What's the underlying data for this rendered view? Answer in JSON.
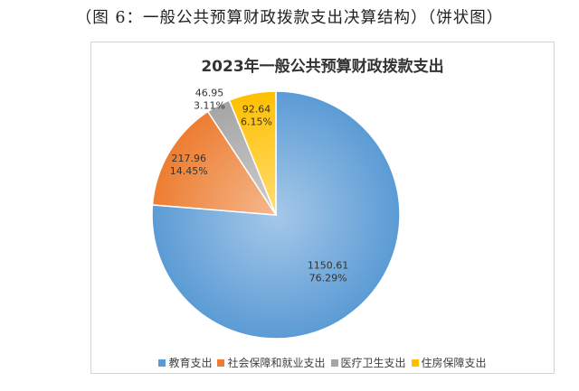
{
  "caption": "（图 6：一般公共预算财政拨款支出决算结构）（饼状图）",
  "chart_data": {
    "type": "pie",
    "title": "2023年一般公共预算财政拨款支出",
    "legend_position": "bottom",
    "slices": [
      {
        "name": "教育支出",
        "value": 1150.61,
        "percent": "76.29%",
        "value_label": "1150.61",
        "color": "#5b9bd5"
      },
      {
        "name": "社会保障和就业支出",
        "value": 217.96,
        "percent": "14.45%",
        "value_label": "217.96",
        "color": "#ed7d31"
      },
      {
        "name": "医疗卫生支出",
        "value": 46.95,
        "percent": "3.11%",
        "value_label": "46.95",
        "color": "#a5a5a5"
      },
      {
        "name": "住房保障支出",
        "value": 92.64,
        "percent": "6.15%",
        "value_label": "92.64",
        "color": "#ffc000"
      }
    ]
  }
}
